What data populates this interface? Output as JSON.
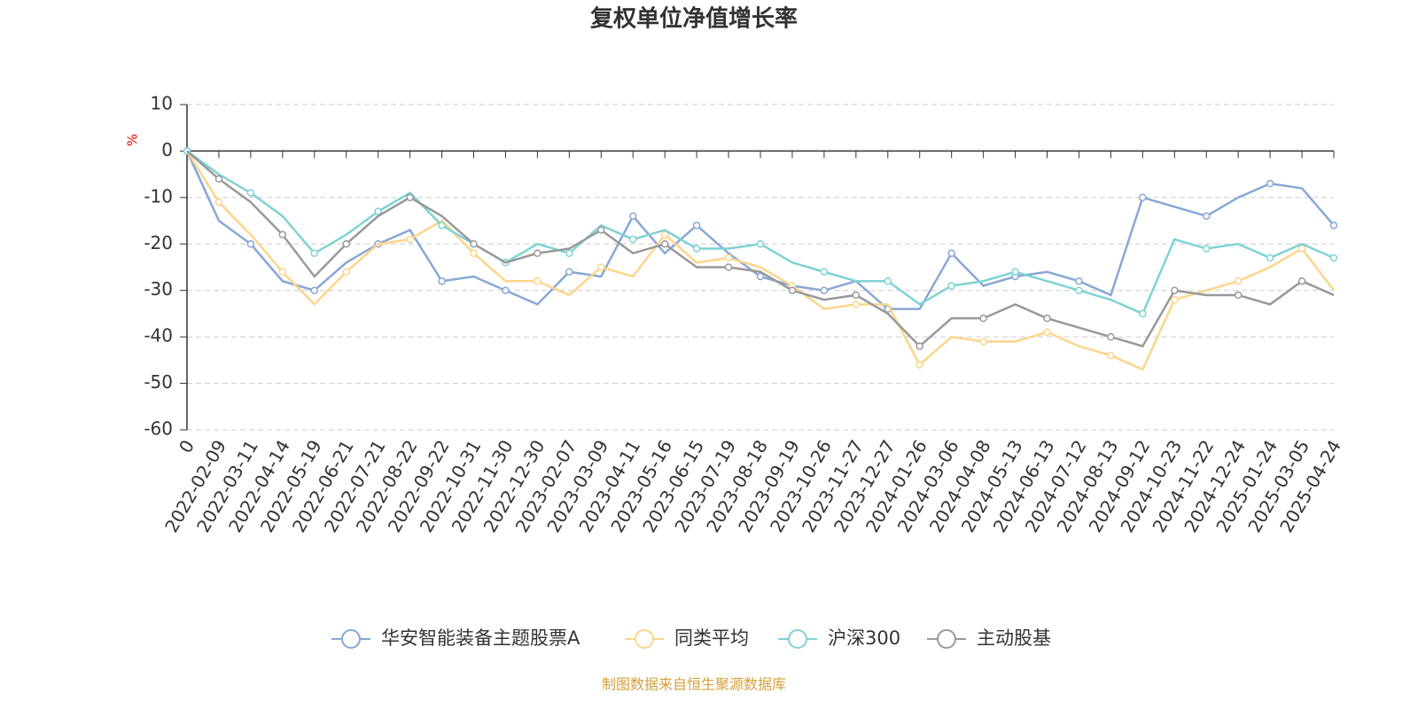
{
  "chart_data": {
    "type": "line",
    "title": "复权单位净值增长率",
    "y_label": "%",
    "source": "制图数据来自恒生聚源数据库",
    "categories": [
      "0",
      "2022-02-09",
      "2022-03-11",
      "2022-04-14",
      "2022-05-19",
      "2022-06-21",
      "2022-07-21",
      "2022-08-22",
      "2022-09-22",
      "2022-10-31",
      "2022-11-30",
      "2022-12-30",
      "2023-02-07",
      "2023-03-09",
      "2023-04-11",
      "2023-05-16",
      "2023-06-15",
      "2023-07-19",
      "2023-08-18",
      "2023-09-19",
      "2023-10-26",
      "2023-11-27",
      "2023-12-27",
      "2024-01-26",
      "2024-03-06",
      "2024-04-08",
      "2024-05-13",
      "2024-06-13",
      "2024-07-12",
      "2024-08-13",
      "2024-09-12",
      "2024-10-23",
      "2024-11-22",
      "2024-12-24",
      "2025-01-24",
      "2025-03-05",
      "2025-04-24"
    ],
    "series": [
      {
        "name": "华安智能装备主题股票A",
        "color": "#87a7d6",
        "values": [
          0,
          -15,
          -20,
          -28,
          -30,
          -24,
          -20,
          -17,
          -28,
          -27,
          -30,
          -33,
          -26,
          -27,
          -14,
          -22,
          -16,
          -22,
          -27,
          -29,
          -30,
          -28,
          -34,
          -34,
          -22,
          -29,
          -27,
          -26,
          -28,
          -31,
          -10,
          -12,
          -14,
          -10,
          -7,
          -8,
          -16
        ]
      },
      {
        "name": "同类平均",
        "color": "#fdd58a",
        "values": [
          0,
          -11,
          -18,
          -26,
          -33,
          -26,
          -20,
          -19,
          -15,
          -22,
          -28,
          -28,
          -31,
          -25,
          -27,
          -18,
          -24,
          -23,
          -25,
          -29,
          -34,
          -33,
          -33,
          -46,
          -40,
          -41,
          -41,
          -39,
          -42,
          -44,
          -47,
          -32,
          -30,
          -28,
          -25,
          -21,
          -30
        ]
      },
      {
        "name": "沪深300",
        "color": "#7fd3d3",
        "values": [
          0,
          -5,
          -9,
          -14,
          -22,
          -18,
          -13,
          -9,
          -16,
          -20,
          -24,
          -20,
          -22,
          -16,
          -19,
          -17,
          -21,
          -21,
          -20,
          -24,
          -26,
          -28,
          -28,
          -33,
          -29,
          -28,
          -26,
          -28,
          -30,
          -32,
          -35,
          -19,
          -21,
          -20,
          -23,
          -20,
          -23
        ]
      },
      {
        "name": "主动股基",
        "color": "#999999",
        "values": [
          0,
          -6,
          -11,
          -18,
          -27,
          -20,
          -14,
          -10,
          -14,
          -20,
          -24,
          -22,
          -21,
          -17,
          -22,
          -20,
          -25,
          -25,
          -26,
          -30,
          -32,
          -31,
          -35,
          -42,
          -36,
          -36,
          -33,
          -36,
          -38,
          -40,
          -42,
          -30,
          -31,
          -31,
          -33,
          -28,
          -31
        ]
      }
    ],
    "ylim": [
      -60,
      10
    ],
    "yticks": [
      -60,
      -50,
      -40,
      -30,
      -20,
      -10,
      0,
      10
    ],
    "grid": true
  }
}
